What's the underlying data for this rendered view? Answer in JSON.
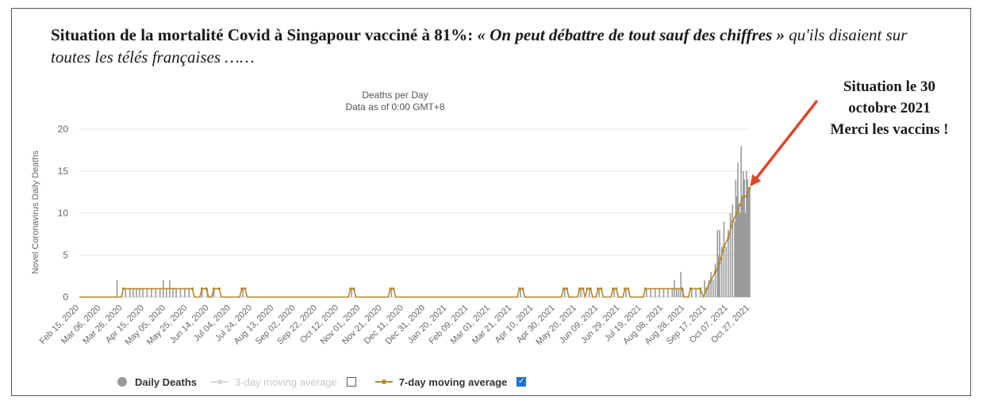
{
  "headline": {
    "part1": "Situation de la mortalité Covid à Singapour vacciné à 81%: ",
    "part2": "« On peut débattre de tout sauf des chiffres »",
    "part3": " qu'ils disaient sur toutes les télés françaises ……"
  },
  "annotation": {
    "line1": "Situation le 30",
    "line2": "octobre 2021",
    "line3": "Merci les vaccins !"
  },
  "colors": {
    "bars": "#9a9a9a",
    "ma7": "#b8862b",
    "arrow": "#e0452b",
    "grid": "#e4e4e4",
    "checkbox_on": "#1e6fd0"
  },
  "chart_data": {
    "type": "bar",
    "title": "Deaths per Day",
    "subtitle": "Data as of 0:00 GMT+8",
    "ylabel": "Novel Coronavirus Daily Deaths",
    "xlabel": "",
    "ylim": [
      0,
      20
    ],
    "yticks": [
      0,
      5,
      10,
      15,
      20
    ],
    "x_range": [
      "2020-02-15",
      "2021-10-30"
    ],
    "xtick_labels": [
      "Feb 15, 2020",
      "Mar 06, 2020",
      "Mar 26, 2020",
      "Apr 15, 2020",
      "May 05, 2020",
      "May 25, 2020",
      "Jun 14, 2020",
      "Jul 04, 2020",
      "Jul 24, 2020",
      "Aug 13, 2020",
      "Sep 02, 2020",
      "Sep 22, 2020",
      "Oct 12, 2020",
      "Nov 01, 2020",
      "Nov 21, 2020",
      "Dec 11, 2020",
      "Dec 31, 2020",
      "Jan 20, 2021",
      "Feb 09, 2021",
      "Mar 01, 2021",
      "Mar 21, 2021",
      "Apr 10, 2021",
      "Apr 30, 2021",
      "May 20, 2021",
      "Jun 09, 2021",
      "Jun 29, 2021",
      "Jul 19, 2021",
      "Aug 08, 2021",
      "Aug 28, 2021",
      "Sep 17, 2021",
      "Oct 07, 2021",
      "Oct 27, 2021"
    ],
    "grid": true,
    "legend_position": "bottom",
    "legend": [
      {
        "label": "Daily Deaths",
        "style": "bold"
      },
      {
        "label": "3-day moving average",
        "style": "muted",
        "checked": false
      },
      {
        "label": "7-day moving average",
        "style": "bold",
        "checked": true
      }
    ],
    "series": [
      {
        "name": "Daily Deaths",
        "points": [
          [
            "2020-03-21",
            2
          ],
          [
            "2020-03-29",
            1
          ],
          [
            "2020-04-02",
            1
          ],
          [
            "2020-04-05",
            1
          ],
          [
            "2020-04-08",
            1
          ],
          [
            "2020-04-11",
            1
          ],
          [
            "2020-04-14",
            1
          ],
          [
            "2020-04-18",
            1
          ],
          [
            "2020-04-22",
            1
          ],
          [
            "2020-04-26",
            1
          ],
          [
            "2020-04-30",
            1
          ],
          [
            "2020-05-03",
            2
          ],
          [
            "2020-05-06",
            1
          ],
          [
            "2020-05-09",
            2
          ],
          [
            "2020-05-12",
            1
          ],
          [
            "2020-05-15",
            1
          ],
          [
            "2020-05-19",
            1
          ],
          [
            "2020-05-23",
            1
          ],
          [
            "2020-05-27",
            1
          ],
          [
            "2020-06-08",
            1
          ],
          [
            "2020-06-13",
            1
          ],
          [
            "2020-06-19",
            1
          ],
          [
            "2020-07-16",
            1
          ],
          [
            "2020-10-25",
            1
          ],
          [
            "2020-12-01",
            1
          ],
          [
            "2021-03-31",
            1
          ],
          [
            "2021-05-11",
            1
          ],
          [
            "2021-05-26",
            1
          ],
          [
            "2021-06-03",
            1
          ],
          [
            "2021-06-12",
            1
          ],
          [
            "2021-06-26",
            1
          ],
          [
            "2021-07-07",
            1
          ],
          [
            "2021-07-26",
            1
          ],
          [
            "2021-07-30",
            1
          ],
          [
            "2021-08-03",
            1
          ],
          [
            "2021-08-07",
            1
          ],
          [
            "2021-08-11",
            1
          ],
          [
            "2021-08-15",
            1
          ],
          [
            "2021-08-19",
            1
          ],
          [
            "2021-08-21",
            2
          ],
          [
            "2021-08-23",
            1
          ],
          [
            "2021-08-25",
            1
          ],
          [
            "2021-08-27",
            3
          ],
          [
            "2021-08-29",
            1
          ],
          [
            "2021-09-06",
            1
          ],
          [
            "2021-09-10",
            1
          ],
          [
            "2021-09-14",
            1
          ],
          [
            "2021-09-18",
            2
          ],
          [
            "2021-09-20",
            1
          ],
          [
            "2021-09-22",
            2
          ],
          [
            "2021-09-24",
            3
          ],
          [
            "2021-09-26",
            2
          ],
          [
            "2021-09-28",
            4
          ],
          [
            "2021-09-30",
            8
          ],
          [
            "2021-10-01",
            5
          ],
          [
            "2021-10-02",
            8
          ],
          [
            "2021-10-04",
            6
          ],
          [
            "2021-10-06",
            9
          ],
          [
            "2021-10-08",
            6
          ],
          [
            "2021-10-10",
            8
          ],
          [
            "2021-10-12",
            10
          ],
          [
            "2021-10-14",
            11
          ],
          [
            "2021-10-16",
            9
          ],
          [
            "2021-10-17",
            14
          ],
          [
            "2021-10-18",
            12
          ],
          [
            "2021-10-19",
            16
          ],
          [
            "2021-10-20",
            11
          ],
          [
            "2021-10-21",
            10
          ],
          [
            "2021-10-22",
            18
          ],
          [
            "2021-10-23",
            12
          ],
          [
            "2021-10-24",
            15
          ],
          [
            "2021-10-25",
            14
          ],
          [
            "2021-10-26",
            10
          ],
          [
            "2021-10-27",
            15
          ],
          [
            "2021-10-28",
            14
          ],
          [
            "2021-10-29",
            13
          ],
          [
            "2021-10-30",
            13
          ]
        ]
      },
      {
        "name": "7-day moving average",
        "points": [
          [
            "2020-02-15",
            0
          ],
          [
            "2020-03-25",
            0
          ],
          [
            "2020-03-27",
            1
          ],
          [
            "2020-05-30",
            1
          ],
          [
            "2020-06-01",
            0
          ],
          [
            "2020-06-06",
            0
          ],
          [
            "2020-06-08",
            1
          ],
          [
            "2020-06-12",
            1
          ],
          [
            "2020-06-14",
            0
          ],
          [
            "2020-06-17",
            0
          ],
          [
            "2020-06-19",
            1
          ],
          [
            "2020-06-24",
            1
          ],
          [
            "2020-06-26",
            0
          ],
          [
            "2020-07-13",
            0
          ],
          [
            "2020-07-15",
            1
          ],
          [
            "2020-07-18",
            1
          ],
          [
            "2020-07-20",
            0
          ],
          [
            "2020-10-22",
            0
          ],
          [
            "2020-10-24",
            1
          ],
          [
            "2020-10-27",
            1
          ],
          [
            "2020-10-29",
            0
          ],
          [
            "2020-11-28",
            0
          ],
          [
            "2020-11-30",
            1
          ],
          [
            "2020-12-03",
            1
          ],
          [
            "2020-12-05",
            0
          ],
          [
            "2021-03-28",
            0
          ],
          [
            "2021-03-30",
            1
          ],
          [
            "2021-04-02",
            1
          ],
          [
            "2021-04-04",
            0
          ],
          [
            "2021-05-08",
            0
          ],
          [
            "2021-05-10",
            1
          ],
          [
            "2021-05-13",
            1
          ],
          [
            "2021-05-15",
            0
          ],
          [
            "2021-05-23",
            0
          ],
          [
            "2021-05-25",
            1
          ],
          [
            "2021-05-28",
            1
          ],
          [
            "2021-05-30",
            0
          ],
          [
            "2021-06-01",
            1
          ],
          [
            "2021-06-04",
            1
          ],
          [
            "2021-06-06",
            0
          ],
          [
            "2021-06-09",
            0
          ],
          [
            "2021-06-11",
            1
          ],
          [
            "2021-06-14",
            1
          ],
          [
            "2021-06-16",
            0
          ],
          [
            "2021-06-23",
            0
          ],
          [
            "2021-06-25",
            1
          ],
          [
            "2021-06-28",
            1
          ],
          [
            "2021-06-30",
            0
          ],
          [
            "2021-07-04",
            0
          ],
          [
            "2021-07-06",
            1
          ],
          [
            "2021-07-09",
            1
          ],
          [
            "2021-07-11",
            0
          ],
          [
            "2021-07-23",
            0
          ],
          [
            "2021-07-25",
            1
          ],
          [
            "2021-08-28",
            1
          ],
          [
            "2021-08-30",
            0
          ],
          [
            "2021-09-03",
            0
          ],
          [
            "2021-09-05",
            1
          ],
          [
            "2021-09-14",
            1
          ],
          [
            "2021-09-17",
            0
          ],
          [
            "2021-09-20",
            1
          ],
          [
            "2021-09-24",
            2
          ],
          [
            "2021-09-28",
            3
          ],
          [
            "2021-10-02",
            4
          ],
          [
            "2021-10-06",
            6
          ],
          [
            "2021-10-10",
            7
          ],
          [
            "2021-10-14",
            9
          ],
          [
            "2021-10-18",
            10
          ],
          [
            "2021-10-21",
            11
          ],
          [
            "2021-10-24",
            12
          ],
          [
            "2021-10-27",
            12
          ],
          [
            "2021-10-30",
            13
          ]
        ]
      }
    ]
  }
}
